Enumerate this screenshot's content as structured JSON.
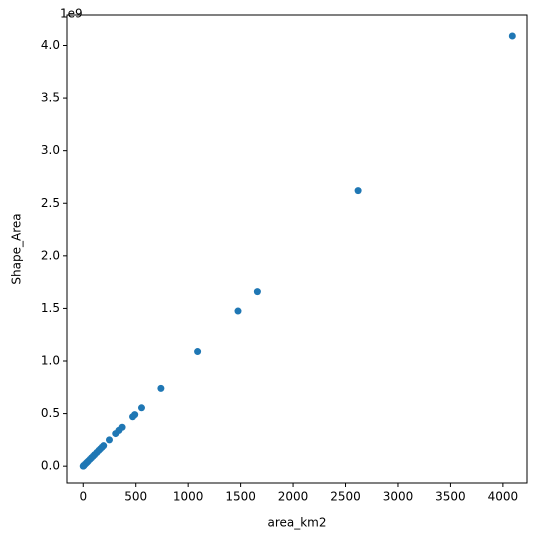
{
  "chart_data": {
    "type": "scatter",
    "x_label": "area_km2",
    "y_label": "Shape_Area",
    "y_offset_label": "1e9",
    "x": [
      4090,
      2620,
      1660,
      1475,
      1090,
      740,
      555,
      490,
      470,
      370,
      340,
      310,
      250,
      195,
      180,
      165,
      150,
      130,
      110,
      95,
      80,
      65,
      50,
      40,
      30,
      20,
      10,
      5,
      2,
      0
    ],
    "values": [
      4.09,
      2.62,
      1.66,
      1.475,
      1.09,
      0.74,
      0.555,
      0.49,
      0.47,
      0.37,
      0.34,
      0.31,
      0.25,
      0.195,
      0.18,
      0.165,
      0.15,
      0.13,
      0.11,
      0.095,
      0.08,
      0.065,
      0.05,
      0.04,
      0.03,
      0.02,
      0.01,
      0.005,
      0.002,
      0
    ],
    "color": "#1f77b4",
    "xlim": [
      -155,
      4230
    ],
    "xticks": [
      0,
      500,
      1000,
      1500,
      2000,
      2500,
      3000,
      3500,
      4000
    ],
    "ylim": [
      -0.16,
      4.29
    ],
    "yticks": [
      {
        "value": 0,
        "label": "0.0"
      },
      0.5,
      {
        "value": 1,
        "label": "1.0"
      },
      1.5,
      {
        "value": 2,
        "label": "2.0"
      },
      2.5,
      {
        "value": 3,
        "label": "3.0"
      },
      3.5,
      {
        "value": 4,
        "label": "4.0"
      }
    ],
    "grid": false
  }
}
